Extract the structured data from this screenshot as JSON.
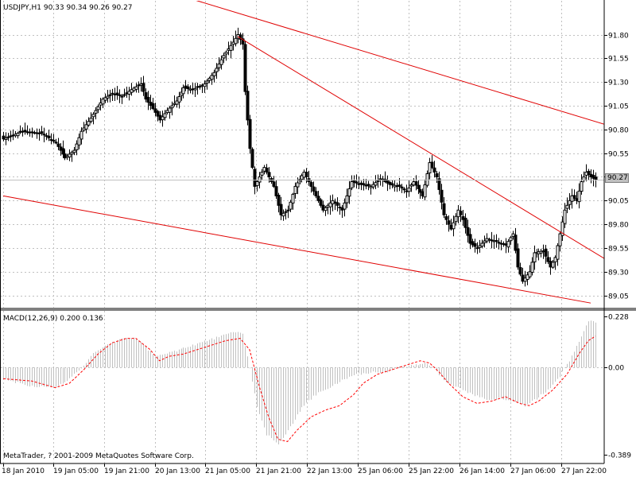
{
  "header": {
    "symbol": "USDJPY,H1",
    "open": "90.33",
    "high": "90.34",
    "low": "90.26",
    "close": "90.27"
  },
  "current_price_label": "90.27",
  "macd_header": {
    "label": "MACD(12,26,9)",
    "main_value": "0.200",
    "signal_value": "0.136"
  },
  "copyright": "MetaTrader, ? 2001-2009 MetaQuotes Software Corp.",
  "colors": {
    "background": "#ffffff",
    "grid": "#c0c0c0",
    "candle": "#000000",
    "trendline": "#e00000",
    "macd_hist": "#c0c0c0",
    "signal": "#ff0000"
  },
  "chart_data": [
    {
      "type": "candlestick",
      "title": "",
      "xlabel": "",
      "ylabel": "",
      "ylim": [
        88.98,
        91.93
      ],
      "y_ticks": [
        "91.80",
        "91.55",
        "91.30",
        "91.05",
        "90.80",
        "90.55",
        "90.30",
        "90.05",
        "89.80",
        "89.55",
        "89.30",
        "89.05"
      ],
      "x_ticks": [
        "18 Jan 2010",
        "19 Jan 05:00",
        "19 Jan 21:00",
        "20 Jan 13:00",
        "21 Jan 05:00",
        "21 Jan 21:00",
        "22 Jan 13:00",
        "25 Jan 06:00",
        "25 Jan 22:00",
        "26 Jan 14:00",
        "27 Jan 06:00",
        "27 Jan 22:00"
      ],
      "close_path": [
        [
          0,
          90.7
        ],
        [
          8,
          90.78
        ],
        [
          16,
          90.76
        ],
        [
          22,
          90.66
        ],
        [
          26,
          90.5
        ],
        [
          30,
          90.58
        ],
        [
          33,
          90.78
        ],
        [
          37,
          90.92
        ],
        [
          42,
          91.12
        ],
        [
          46,
          91.18
        ],
        [
          50,
          91.15
        ],
        [
          54,
          91.22
        ],
        [
          58,
          91.28
        ],
        [
          60,
          91.12
        ],
        [
          63,
          91.02
        ],
        [
          66,
          90.9
        ],
        [
          69,
          91.0
        ],
        [
          73,
          91.1
        ],
        [
          76,
          91.24
        ],
        [
          80,
          91.22
        ],
        [
          85,
          91.28
        ],
        [
          89,
          91.4
        ],
        [
          93,
          91.58
        ],
        [
          97,
          91.72
        ],
        [
          99,
          91.8
        ],
        [
          101,
          91.7
        ],
        [
          102,
          91.2
        ],
        [
          104,
          90.6
        ],
        [
          106,
          90.2
        ],
        [
          110,
          90.4
        ],
        [
          114,
          90.2
        ],
        [
          117,
          89.9
        ],
        [
          120,
          89.95
        ],
        [
          123,
          90.2
        ],
        [
          127,
          90.35
        ],
        [
          131,
          90.15
        ],
        [
          135,
          89.95
        ],
        [
          139,
          90.05
        ],
        [
          143,
          89.95
        ],
        [
          147,
          90.25
        ],
        [
          151,
          90.22
        ],
        [
          155,
          90.2
        ],
        [
          159,
          90.28
        ],
        [
          163,
          90.22
        ],
        [
          167,
          90.2
        ],
        [
          170,
          90.15
        ],
        [
          173,
          90.25
        ],
        [
          177,
          90.1
        ],
        [
          180,
          90.45
        ],
        [
          183,
          90.3
        ],
        [
          186,
          89.9
        ],
        [
          189,
          89.75
        ],
        [
          192,
          89.95
        ],
        [
          194,
          89.85
        ],
        [
          197,
          89.6
        ],
        [
          200,
          89.55
        ],
        [
          204,
          89.65
        ],
        [
          208,
          89.62
        ],
        [
          212,
          89.58
        ],
        [
          215,
          89.7
        ],
        [
          217,
          89.35
        ],
        [
          219,
          89.2
        ],
        [
          222,
          89.3
        ],
        [
          224,
          89.5
        ],
        [
          228,
          89.52
        ],
        [
          231,
          89.35
        ],
        [
          233,
          89.45
        ],
        [
          235,
          89.7
        ],
        [
          237,
          89.95
        ],
        [
          240,
          90.1
        ],
        [
          242,
          90.05
        ],
        [
          244,
          90.25
        ],
        [
          246,
          90.35
        ],
        [
          248,
          90.3
        ],
        [
          250,
          90.27
        ]
      ],
      "trendlines": [
        {
          "from": [
            63,
            92.3
          ],
          "to": [
            261,
            90.8
          ]
        },
        {
          "from": [
            99,
            91.78
          ],
          "to": [
            261,
            89.33
          ]
        },
        {
          "from": [
            0,
            90.1
          ],
          "to": [
            248,
            88.97
          ]
        }
      ]
    },
    {
      "type": "histogram+line",
      "title": "MACD(12,26,9)",
      "ylim": [
        -0.389,
        0.228
      ],
      "y_ticks": [
        "0.228",
        "0.00",
        "-0.389"
      ],
      "series": [
        {
          "name": "MACD",
          "points": [
            [
              0,
              -0.05
            ],
            [
              10,
              -0.08
            ],
            [
              22,
              -0.09
            ],
            [
              28,
              -0.05
            ],
            [
              33,
              0.0
            ],
            [
              38,
              0.06
            ],
            [
              44,
              0.1
            ],
            [
              50,
              0.13
            ],
            [
              56,
              0.13
            ],
            [
              60,
              0.09
            ],
            [
              64,
              0.05
            ],
            [
              68,
              0.06
            ],
            [
              74,
              0.08
            ],
            [
              80,
              0.1
            ],
            [
              86,
              0.12
            ],
            [
              92,
              0.14
            ],
            [
              98,
              0.16
            ],
            [
              101,
              0.15
            ],
            [
              104,
              0.0
            ],
            [
              107,
              -0.18
            ],
            [
              111,
              -0.3
            ],
            [
              116,
              -0.34
            ],
            [
              120,
              -0.28
            ],
            [
              126,
              -0.18
            ],
            [
              132,
              -0.12
            ],
            [
              138,
              -0.09
            ],
            [
              144,
              -0.05
            ],
            [
              150,
              -0.03
            ],
            [
              156,
              -0.02
            ],
            [
              162,
              -0.02
            ],
            [
              166,
              0.0
            ],
            [
              172,
              0.01
            ],
            [
              178,
              0.02
            ],
            [
              182,
              0.0
            ],
            [
              186,
              -0.06
            ],
            [
              192,
              -0.09
            ],
            [
              198,
              -0.12
            ],
            [
              204,
              -0.14
            ],
            [
              210,
              -0.14
            ],
            [
              216,
              -0.15
            ],
            [
              220,
              -0.17
            ],
            [
              225,
              -0.14
            ],
            [
              230,
              -0.1
            ],
            [
              235,
              -0.04
            ],
            [
              240,
              0.05
            ],
            [
              244,
              0.14
            ],
            [
              247,
              0.21
            ],
            [
              250,
              0.2
            ]
          ]
        },
        {
          "name": "Signal",
          "points": [
            [
              0,
              -0.05
            ],
            [
              12,
              -0.06
            ],
            [
              22,
              -0.09
            ],
            [
              28,
              -0.07
            ],
            [
              34,
              -0.01
            ],
            [
              40,
              0.06
            ],
            [
              46,
              0.11
            ],
            [
              52,
              0.13
            ],
            [
              56,
              0.13
            ],
            [
              62,
              0.08
            ],
            [
              66,
              0.03
            ],
            [
              70,
              0.05
            ],
            [
              76,
              0.06
            ],
            [
              82,
              0.08
            ],
            [
              88,
              0.1
            ],
            [
              94,
              0.12
            ],
            [
              100,
              0.13
            ],
            [
              104,
              0.08
            ],
            [
              108,
              -0.08
            ],
            [
              112,
              -0.22
            ],
            [
              116,
              -0.32
            ],
            [
              120,
              -0.33
            ],
            [
              124,
              -0.28
            ],
            [
              130,
              -0.22
            ],
            [
              136,
              -0.19
            ],
            [
              142,
              -0.17
            ],
            [
              148,
              -0.12
            ],
            [
              152,
              -0.07
            ],
            [
              158,
              -0.03
            ],
            [
              164,
              -0.01
            ],
            [
              170,
              0.01
            ],
            [
              176,
              0.03
            ],
            [
              180,
              0.02
            ],
            [
              184,
              -0.02
            ],
            [
              188,
              -0.07
            ],
            [
              194,
              -0.13
            ],
            [
              200,
              -0.16
            ],
            [
              206,
              -0.15
            ],
            [
              212,
              -0.13
            ],
            [
              218,
              -0.16
            ],
            [
              222,
              -0.17
            ],
            [
              226,
              -0.15
            ],
            [
              232,
              -0.1
            ],
            [
              238,
              -0.03
            ],
            [
              243,
              0.06
            ],
            [
              247,
              0.12
            ],
            [
              250,
              0.14
            ]
          ]
        }
      ]
    }
  ]
}
